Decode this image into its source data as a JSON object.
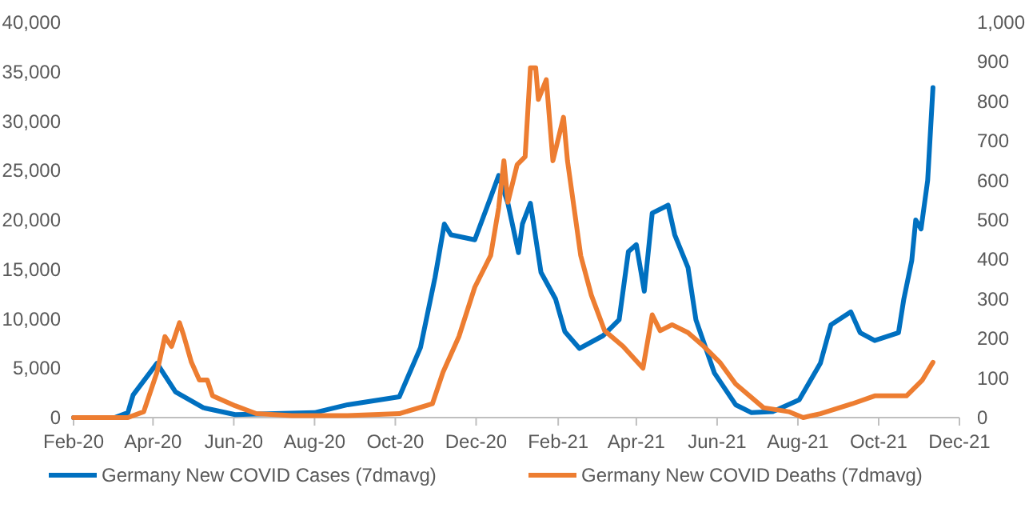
{
  "chart_data": {
    "type": "line",
    "legend": "bottom",
    "grid": false,
    "marker": "none",
    "line_style": "solid",
    "xlim": [
      "2020-02-01",
      "2021-12-01"
    ],
    "xticks": [
      {
        "value": "2020-02-01",
        "label": "Feb-20"
      },
      {
        "value": "2020-04-01",
        "label": "Apr-20"
      },
      {
        "value": "2020-06-01",
        "label": "Jun-20"
      },
      {
        "value": "2020-08-01",
        "label": "Aug-20"
      },
      {
        "value": "2020-10-01",
        "label": "Oct-20"
      },
      {
        "value": "2020-12-01",
        "label": "Dec-20"
      },
      {
        "value": "2021-02-01",
        "label": "Feb-21"
      },
      {
        "value": "2021-04-01",
        "label": "Apr-21"
      },
      {
        "value": "2021-06-01",
        "label": "Jun-21"
      },
      {
        "value": "2021-08-01",
        "label": "Aug-21"
      },
      {
        "value": "2021-10-01",
        "label": "Oct-21"
      },
      {
        "value": "2021-12-01",
        "label": "Dec-21"
      }
    ],
    "ylim": [
      0,
      40000
    ],
    "yticks": [
      0,
      {
        "value": 5000,
        "label": "5,000"
      },
      {
        "value": 10000,
        "label": "10,000"
      },
      {
        "value": 15000,
        "label": "15,000"
      },
      {
        "value": 20000,
        "label": "20,000"
      },
      {
        "value": 25000,
        "label": "25,000"
      },
      {
        "value": 30000,
        "label": "30,000"
      },
      {
        "value": 35000,
        "label": "35,000"
      },
      {
        "value": 40000,
        "label": "40,000"
      }
    ],
    "y2lim": [
      0,
      1000
    ],
    "y2ticks": [
      0,
      100,
      200,
      300,
      400,
      500,
      600,
      700,
      800,
      900,
      {
        "value": 1000,
        "label": "1,000"
      }
    ],
    "series": [
      {
        "name": "Germany New COVID Cases (7dmavg)",
        "color": "#0070c0",
        "x": [
          "2020-02-01",
          "2020-03-03",
          "2020-03-13",
          "2020-03-17",
          "2020-04-04",
          "2020-04-18",
          "2020-05-09",
          "2020-06-02",
          "2020-08-01",
          "2020-08-26",
          "2020-10-04",
          "2020-10-20",
          "2020-10-31",
          "2020-11-07",
          "2020-11-12",
          "2020-11-30",
          "2020-12-12",
          "2020-12-18",
          "2020-12-25",
          "2021-01-02",
          "2021-01-05",
          "2021-01-11",
          "2021-01-19",
          "2021-01-30",
          "2021-02-06",
          "2021-02-17",
          "2021-03-07",
          "2021-03-19",
          "2021-03-26",
          "2021-04-01",
          "2021-04-07",
          "2021-04-13",
          "2021-04-25",
          "2021-04-30",
          "2021-05-10",
          "2021-05-16",
          "2021-05-30",
          "2021-06-15",
          "2021-06-27",
          "2021-07-13",
          "2021-08-02",
          "2021-08-18",
          "2021-08-26",
          "2021-09-10",
          "2021-09-17",
          "2021-09-28",
          "2021-10-16",
          "2021-10-20",
          "2021-10-26",
          "2021-10-29",
          "2021-11-02",
          "2021-11-07",
          "2021-11-11"
        ],
        "values": [
          0,
          0,
          500,
          2300,
          5500,
          2600,
          1000,
          300,
          500,
          1300,
          2100,
          7100,
          14200,
          19600,
          18500,
          18000,
          22300,
          24500,
          21700,
          16700,
          19600,
          21700,
          14700,
          12000,
          8700,
          7000,
          8300,
          9900,
          16800,
          17500,
          12800,
          20700,
          21500,
          18500,
          15200,
          9900,
          4500,
          1300,
          500,
          600,
          1800,
          5500,
          9400,
          10700,
          8600,
          7800,
          8600,
          12000,
          15900,
          20000,
          19100,
          24000,
          33400
        ]
      },
      {
        "name": "Germany New COVID Deaths (7dmavg)",
        "color": "#ed7d31",
        "axis": "y2",
        "x": [
          "2020-02-01",
          "2020-03-13",
          "2020-03-25",
          "2020-04-04",
          "2020-04-10",
          "2020-04-15",
          "2020-04-21",
          "2020-04-24",
          "2020-04-30",
          "2020-05-06",
          "2020-05-12",
          "2020-05-16",
          "2020-06-02",
          "2020-06-18",
          "2020-07-15",
          "2020-08-26",
          "2020-10-04",
          "2020-10-29",
          "2020-11-06",
          "2020-11-18",
          "2020-11-30",
          "2020-12-12",
          "2020-12-18",
          "2020-12-22",
          "2020-12-25",
          "2021-01-01",
          "2021-01-07",
          "2021-01-11",
          "2021-01-15",
          "2021-01-17",
          "2021-01-23",
          "2021-01-28",
          "2021-02-05",
          "2021-02-08",
          "2021-02-18",
          "2021-02-26",
          "2021-03-08",
          "2021-03-22",
          "2021-04-06",
          "2021-04-13",
          "2021-04-19",
          "2021-04-28",
          "2021-05-10",
          "2021-05-22",
          "2021-06-03",
          "2021-06-15",
          "2021-07-06",
          "2021-07-25",
          "2021-08-05",
          "2021-08-18",
          "2021-09-11",
          "2021-09-28",
          "2021-10-22",
          "2021-11-03",
          "2021-11-11"
        ],
        "values": [
          0,
          0,
          15,
          115,
          205,
          180,
          240,
          210,
          140,
          95,
          95,
          55,
          30,
          10,
          5,
          5,
          10,
          35,
          115,
          205,
          330,
          410,
          530,
          650,
          545,
          640,
          660,
          885,
          885,
          805,
          855,
          650,
          760,
          650,
          410,
          310,
          220,
          180,
          125,
          260,
          220,
          235,
          215,
          180,
          140,
          85,
          25,
          15,
          0,
          10,
          35,
          55,
          55,
          95,
          140
        ]
      }
    ]
  }
}
